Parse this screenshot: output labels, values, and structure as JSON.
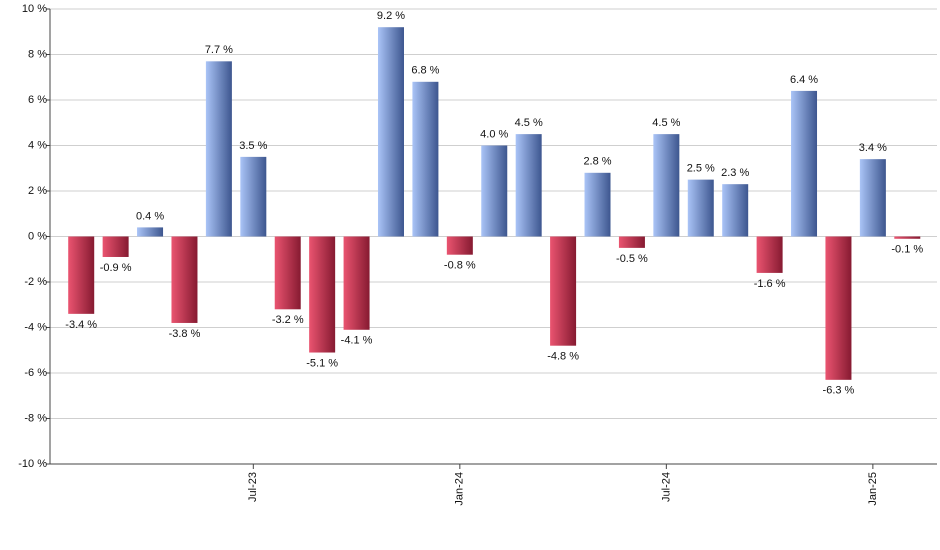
{
  "chart_data": {
    "type": "bar",
    "categories": [
      null,
      null,
      null,
      null,
      null,
      "Jul-23",
      null,
      null,
      null,
      null,
      null,
      "Jan-24",
      null,
      null,
      null,
      null,
      null,
      "Jul-24",
      null,
      null,
      null,
      null,
      null,
      "Jan-25",
      null
    ],
    "values": [
      -3.4,
      -0.9,
      0.4,
      -3.8,
      7.7,
      3.5,
      -3.2,
      -5.1,
      -4.1,
      9.2,
      6.8,
      -0.8,
      4.0,
      4.5,
      -4.8,
      2.8,
      -0.5,
      4.5,
      2.5,
      2.3,
      -1.6,
      6.4,
      -6.3,
      3.4,
      -0.1
    ],
    "value_labels": [
      "-3.4 %",
      "-0.9 %",
      "0.4 %",
      "-3.8 %",
      "7.7 %",
      "3.5 %",
      "-3.2 %",
      "-5.1 %",
      "-4.1 %",
      "9.2 %",
      "6.8 %",
      "-0.8 %",
      "4.0 %",
      "4.5 %",
      "-4.8 %",
      "2.8 %",
      "-0.5 %",
      "4.5 %",
      "2.5 %",
      "2.3 %",
      "-1.6 %",
      "6.4 %",
      "-6.3 %",
      "3.4 %",
      "-0.1 %"
    ],
    "colors": {
      "positive": [
        "#aac4f7",
        "#3d568f"
      ],
      "negative": [
        "#ea5470",
        "#861a31"
      ]
    },
    "ylim": [
      -10,
      10
    ],
    "yticks": [
      {
        "value": -10,
        "label": "-10 %"
      },
      {
        "value": -8,
        "label": "-8 %"
      },
      {
        "value": -6,
        "label": "-6 %"
      },
      {
        "value": -4,
        "label": "-4 %"
      },
      {
        "value": -2,
        "label": "-2 %"
      },
      {
        "value": 0,
        "label": "0 %"
      },
      {
        "value": 2,
        "label": "2 %"
      },
      {
        "value": 4,
        "label": "4 %"
      },
      {
        "value": 6,
        "label": "6 %"
      },
      {
        "value": 8,
        "label": "8 %"
      },
      {
        "value": 10,
        "label": "10 %"
      }
    ],
    "grid": true
  }
}
